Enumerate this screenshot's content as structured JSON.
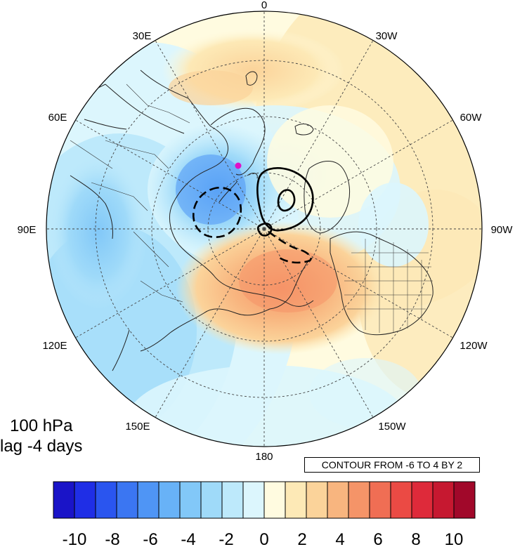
{
  "title": {
    "line1": "100 hPa",
    "line2": "lag -4 days"
  },
  "contour_info": "CONTOUR FROM -6 TO 4 BY 2",
  "map": {
    "projection": "north polar stereographic",
    "longitude_labels": [
      "0",
      "30W",
      "60W",
      "90W",
      "120W",
      "150W",
      "180",
      "150E",
      "120E",
      "90E",
      "60E",
      "30E"
    ],
    "graticule": "dashed",
    "marker_color": "#e010c8"
  },
  "colorbar": {
    "colors": [
      "#1a14c8",
      "#1f2ee6",
      "#2a55ef",
      "#3b76f2",
      "#4f95f5",
      "#68b2f7",
      "#82c8f8",
      "#9fdaf9",
      "#bde9fb",
      "#dcf6fd",
      "#fffbe0",
      "#fde9b6",
      "#fbd39a",
      "#f8b57f",
      "#f59468",
      "#f06e54",
      "#eb4a44",
      "#de2a3a",
      "#c61830",
      "#a1082a"
    ],
    "tick_labels": [
      "-10",
      "-8",
      "-6",
      "-4",
      "-2",
      "0",
      "2",
      "4",
      "6",
      "8",
      "10"
    ]
  }
}
